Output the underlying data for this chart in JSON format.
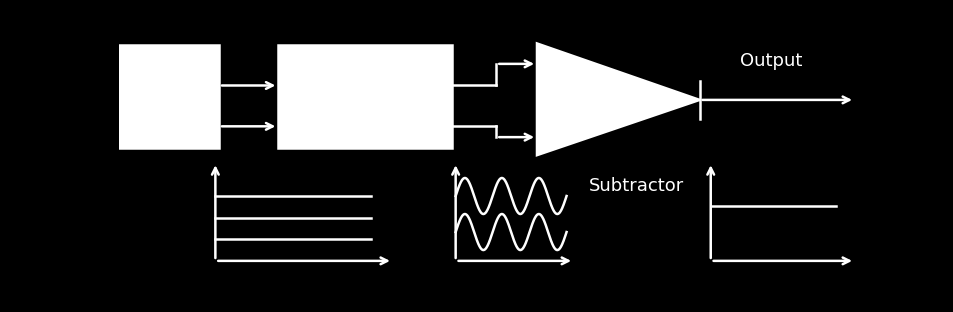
{
  "bg_color": "#000000",
  "fg_color": "#ffffff",
  "output_label": "Output",
  "subtractor_label": "Subtractor",
  "line_width": 1.8
}
